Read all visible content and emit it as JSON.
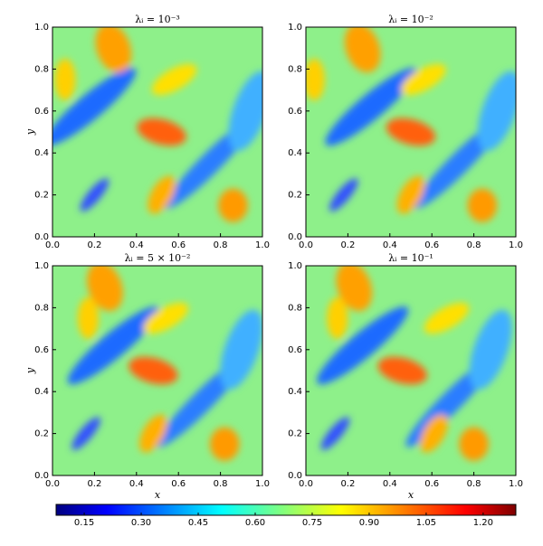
{
  "chart_data": [
    {
      "type": "heatmap",
      "title": "λᵢ = 10⁻³",
      "ylabel": "y",
      "xlim": [
        0,
        1
      ],
      "ylim": [
        0,
        1
      ],
      "xticks": [
        {
          "value": 0,
          "label": "0.0"
        },
        {
          "value": 0.2,
          "label": "0.2"
        },
        {
          "value": 0.4,
          "label": "0.4"
        },
        {
          "value": 0.6,
          "label": "0.6"
        },
        {
          "value": 0.8,
          "label": "0.8"
        },
        {
          "value": 1,
          "label": "1.0"
        }
      ],
      "yticks": [
        {
          "value": 0,
          "label": "0.0"
        },
        {
          "value": 0.2,
          "label": "0.2"
        },
        {
          "value": 0.4,
          "label": "0.4"
        },
        {
          "value": 0.6,
          "label": "0.6"
        },
        {
          "value": 0.8,
          "label": "0.8"
        },
        {
          "value": 1,
          "label": "1.0"
        }
      ]
    },
    {
      "type": "heatmap",
      "title": "λᵢ = 10⁻²",
      "xlim": [
        0,
        1
      ],
      "ylim": [
        0,
        1
      ],
      "xticks": [
        {
          "value": 0,
          "label": "0.0"
        },
        {
          "value": 0.2,
          "label": "0.2"
        },
        {
          "value": 0.4,
          "label": "0.4"
        },
        {
          "value": 0.6,
          "label": "0.6"
        },
        {
          "value": 0.8,
          "label": "0.8"
        },
        {
          "value": 1,
          "label": "1.0"
        }
      ],
      "yticks": [
        {
          "value": 0,
          "label": "0.0"
        },
        {
          "value": 0.2,
          "label": "0.2"
        },
        {
          "value": 0.4,
          "label": "0.4"
        },
        {
          "value": 0.6,
          "label": "0.6"
        },
        {
          "value": 0.8,
          "label": "0.8"
        },
        {
          "value": 1,
          "label": "1.0"
        }
      ]
    },
    {
      "type": "heatmap",
      "title": "λᵢ = 5 × 10⁻²",
      "xlabel": "x",
      "ylabel": "y",
      "xlim": [
        0,
        1
      ],
      "ylim": [
        0,
        1
      ],
      "xticks": [
        {
          "value": 0,
          "label": "0.0"
        },
        {
          "value": 0.2,
          "label": "0.2"
        },
        {
          "value": 0.4,
          "label": "0.4"
        },
        {
          "value": 0.6,
          "label": "0.6"
        },
        {
          "value": 0.8,
          "label": "0.8"
        },
        {
          "value": 1,
          "label": "1.0"
        }
      ],
      "yticks": [
        {
          "value": 0,
          "label": "0.0"
        },
        {
          "value": 0.2,
          "label": "0.2"
        },
        {
          "value": 0.4,
          "label": "0.4"
        },
        {
          "value": 0.6,
          "label": "0.6"
        },
        {
          "value": 0.8,
          "label": "0.8"
        },
        {
          "value": 1,
          "label": "1.0"
        }
      ]
    },
    {
      "type": "heatmap",
      "title": "λᵢ = 10⁻¹",
      "xlabel": "x",
      "xlim": [
        0,
        1
      ],
      "ylim": [
        0,
        1
      ],
      "xticks": [
        {
          "value": 0,
          "label": "0.0"
        },
        {
          "value": 0.2,
          "label": "0.2"
        },
        {
          "value": 0.4,
          "label": "0.4"
        },
        {
          "value": 0.6,
          "label": "0.6"
        },
        {
          "value": 0.8,
          "label": "0.8"
        },
        {
          "value": 1,
          "label": "1.0"
        }
      ],
      "yticks": [
        {
          "value": 0,
          "label": "0.0"
        },
        {
          "value": 0.2,
          "label": "0.2"
        },
        {
          "value": 0.4,
          "label": "0.4"
        },
        {
          "value": 0.6,
          "label": "0.6"
        },
        {
          "value": 0.8,
          "label": "0.8"
        },
        {
          "value": 1,
          "label": "1.0"
        }
      ]
    },
    {
      "type": "colorbar",
      "colormap": "jet",
      "lim": [
        0.076,
        1.286
      ],
      "ticks": [
        0.15,
        {
          "value": 0.3,
          "label": "0.30"
        },
        0.45,
        {
          "value": 0.6,
          "label": "0.60"
        },
        0.75,
        {
          "value": 0.9,
          "label": "0.90"
        },
        1.05,
        {
          "value": 1.2,
          "label": "1.20"
        }
      ]
    }
  ]
}
